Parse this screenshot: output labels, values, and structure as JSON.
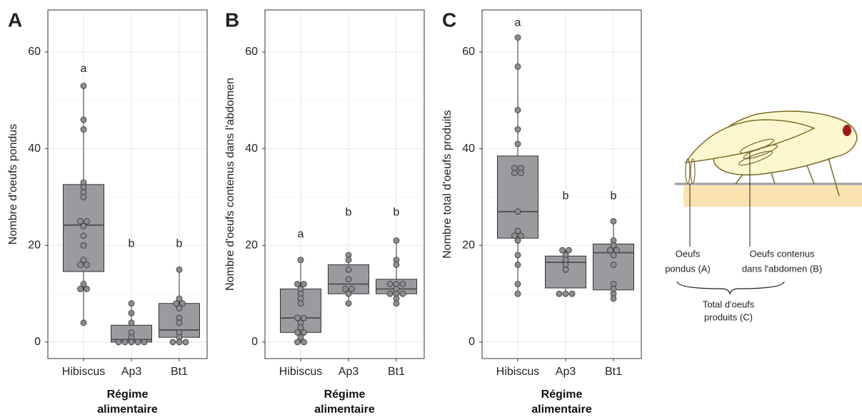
{
  "chart_data": [
    {
      "type": "box",
      "panel": "A",
      "ylabel": "Nombre d'oeufs pondus",
      "xlabel": "Régime alimentaire",
      "categories": [
        "Hibiscus",
        "Ap3",
        "Bt1"
      ],
      "ylim": [
        -3.4,
        68.7
      ],
      "yticks": [
        0,
        20,
        40,
        60
      ],
      "grid": true,
      "color": "#9a9b9f",
      "boxes": [
        {
          "min": 4,
          "q1": 14.6,
          "median": 24.2,
          "q3": 32.6,
          "max": 53
        },
        {
          "min": 0,
          "q1": 0,
          "median": 0.5,
          "q3": 3.5,
          "max": 8
        },
        {
          "min": 0,
          "q1": 1,
          "median": 2.5,
          "q3": 8,
          "max": 15
        }
      ],
      "points": [
        [
          53,
          46,
          44,
          33,
          32,
          31,
          30,
          25,
          25,
          24,
          22,
          20,
          17,
          16,
          16,
          12,
          11,
          11,
          4
        ],
        [
          8,
          6,
          4,
          2,
          1,
          0,
          0,
          0,
          0,
          0
        ],
        [
          15,
          9,
          8,
          8,
          7,
          5,
          4,
          2,
          1,
          0,
          0,
          0
        ]
      ],
      "annotations": [
        {
          "text": "a",
          "y": 56.5
        },
        {
          "text": "b",
          "y": 20.3
        },
        {
          "text": "b",
          "y": 20.3
        }
      ]
    },
    {
      "type": "box",
      "panel": "B",
      "ylabel": "Nombre d'oeufs contenus dans l'abdomen",
      "xlabel": "Régime alimentaire",
      "categories": [
        "Hibiscus",
        "Ap3",
        "Bt1"
      ],
      "ylim": [
        -3.4,
        68.7
      ],
      "yticks": [
        0,
        20,
        40,
        60
      ],
      "grid": true,
      "color": "#9a9b9f",
      "boxes": [
        {
          "min": 0,
          "q1": 2,
          "median": 5,
          "q3": 11,
          "max": 17
        },
        {
          "min": 8,
          "q1": 10,
          "median": 12,
          "q3": 16,
          "max": 18
        },
        {
          "min": 8,
          "q1": 10,
          "median": 11,
          "q3": 13,
          "max": 21
        }
      ],
      "points": [
        [
          17,
          12,
          12,
          11,
          10,
          9,
          8,
          5,
          5,
          4,
          3,
          2,
          2,
          1,
          0,
          0
        ],
        [
          18,
          17,
          15,
          13,
          11,
          11,
          10,
          8
        ],
        [
          21,
          17,
          16,
          12,
          12,
          12,
          11,
          10,
          10,
          10,
          9,
          8
        ]
      ],
      "annotations": [
        {
          "text": "a",
          "y": 22.3
        },
        {
          "text": "b",
          "y": 26.8
        },
        {
          "text": "b",
          "y": 26.8
        }
      ]
    },
    {
      "type": "box",
      "panel": "C",
      "ylabel": "Nombre total d'oeufs produits",
      "xlabel": "Régime alimentaire",
      "categories": [
        "Hibiscus",
        "Ap3",
        "Bt1"
      ],
      "ylim": [
        -3.4,
        68.7
      ],
      "yticks": [
        0,
        20,
        40,
        60
      ],
      "grid": true,
      "color": "#9a9b9f",
      "boxes": [
        {
          "min": 10,
          "q1": 21.5,
          "median": 27,
          "q3": 38.5,
          "max": 63
        },
        {
          "min": 10,
          "q1": 11.2,
          "median": 16.5,
          "q3": 17.8,
          "max": 19
        },
        {
          "min": 9,
          "q1": 10.8,
          "median": 18.5,
          "q3": 20.3,
          "max": 25
        }
      ],
      "points": [
        [
          63,
          57,
          48,
          44,
          41,
          36,
          36,
          35,
          35,
          27,
          23,
          22,
          22,
          21,
          18,
          16,
          12,
          10
        ],
        [
          19,
          19,
          18,
          17,
          16,
          15,
          10,
          10,
          10
        ],
        [
          25,
          21,
          20,
          19,
          19,
          18,
          16,
          12,
          11,
          10,
          9
        ]
      ],
      "annotations": [
        {
          "text": "a",
          "y": 66
        },
        {
          "text": "b",
          "y": 30.2
        },
        {
          "text": "b",
          "y": 30.2
        }
      ]
    }
  ],
  "diagram": {
    "laid": [
      "Oeufs",
      "pondus (A)"
    ],
    "contained": [
      "Oeufs contenus",
      "dans l'abdomen (B)"
    ],
    "total": [
      "Total d'oeufs",
      "produits (C)"
    ]
  }
}
